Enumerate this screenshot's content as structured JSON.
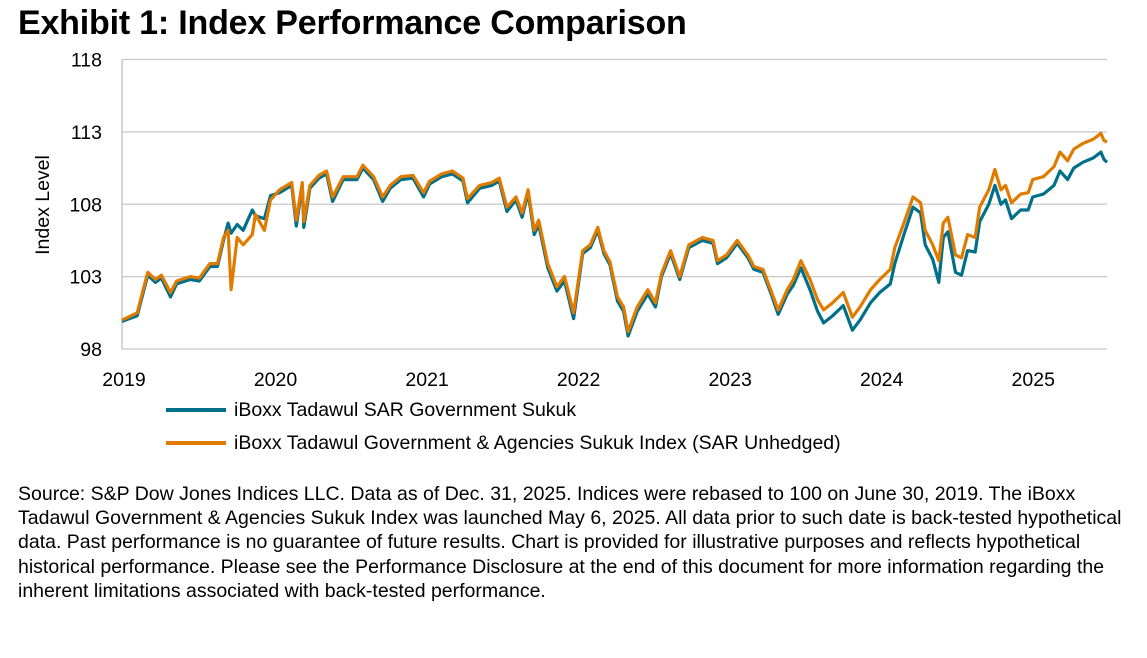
{
  "title": "Exhibit 1: Index Performance Comparison",
  "footnote": "Source: S&P Dow Jones Indices LLC.  Data as of Dec. 31, 2025.  Indices were rebased to 100 on June 30, 2019. The iBoxx Tadawul Government & Agencies Sukuk Index was launched May 6, 2025.  All data prior to such date is back-tested hypothetical data.  Past performance is no guarantee of future results.  Chart is provided for illustrative purposes and reflects hypothetical historical performance. Please see the Performance Disclosure at the end of this document for more information regarding the inherent limitations associated with back-tested performance.",
  "chart_data": {
    "type": "line",
    "title": "Exhibit 1: Index Performance Comparison",
    "xlabel": "",
    "ylabel": "Index Level",
    "xlim": [
      2019,
      2025.5
    ],
    "ylim": [
      98,
      118
    ],
    "x_ticks": [
      2019,
      2020,
      2021,
      2022,
      2023,
      2024,
      2025
    ],
    "x_tick_labels": [
      "2019",
      "2020",
      "2021",
      "2022",
      "2023",
      "2024",
      "2025"
    ],
    "y_ticks": [
      98,
      103,
      108,
      113,
      118
    ],
    "y_tick_labels": [
      "98",
      "103",
      "108",
      "113",
      "118"
    ],
    "grid": "horizontal",
    "legend_position": "bottom",
    "x": [
      2019.0,
      2019.1,
      2019.13,
      2019.17,
      2019.22,
      2019.26,
      2019.32,
      2019.36,
      2019.45,
      2019.51,
      2019.58,
      2019.63,
      2019.67,
      2019.7,
      2019.72,
      2019.76,
      2019.8,
      2019.86,
      2019.88,
      2019.94,
      2019.98,
      2020.04,
      2020.12,
      2020.15,
      2020.19,
      2020.2,
      2020.24,
      2020.3,
      2020.35,
      2020.39,
      2020.46,
      2020.55,
      2020.59,
      2020.66,
      2020.72,
      2020.77,
      2020.84,
      2020.92,
      2020.99,
      2021.03,
      2021.11,
      2021.18,
      2021.25,
      2021.28,
      2021.36,
      2021.44,
      2021.49,
      2021.54,
      2021.6,
      2021.64,
      2021.68,
      2021.72,
      2021.75,
      2021.81,
      2021.87,
      2021.92,
      2021.98,
      2022.04,
      2022.09,
      2022.14,
      2022.18,
      2022.22,
      2022.27,
      2022.31,
      2022.34,
      2022.4,
      2022.47,
      2022.52,
      2022.56,
      2022.62,
      2022.68,
      2022.74,
      2022.83,
      2022.9,
      2022.93,
      2022.99,
      2023.06,
      2023.13,
      2023.17,
      2023.23,
      2023.28,
      2023.33,
      2023.39,
      2023.43,
      2023.48,
      2023.54,
      2023.59,
      2023.63,
      2023.69,
      2023.76,
      2023.82,
      2023.87,
      2023.94,
      2024.0,
      2024.07,
      2024.1,
      2024.16,
      2024.22,
      2024.27,
      2024.3,
      2024.35,
      2024.39,
      2024.42,
      2024.45,
      2024.5,
      2024.54,
      2024.58,
      2024.63,
      2024.66,
      2024.72,
      2024.76,
      2024.8,
      2024.83,
      2024.87,
      2024.93,
      2024.98,
      2025.01,
      2025.08,
      2025.15,
      2025.19,
      2025.24,
      2025.28,
      2025.34,
      2025.41,
      2025.46,
      2025.48,
      2025.5
    ],
    "series": [
      {
        "name": "iBoxx Tadawul SAR Government Sukuk",
        "color": "#00708A",
        "values": [
          99.9,
          100.3,
          101.5,
          103.1,
          102.6,
          102.9,
          101.6,
          102.5,
          102.8,
          102.7,
          103.7,
          103.7,
          105.5,
          106.7,
          106.0,
          106.6,
          106.2,
          107.6,
          107.2,
          107.0,
          108.6,
          108.8,
          109.3,
          106.5,
          109.3,
          106.4,
          109.1,
          109.8,
          110.1,
          108.2,
          109.7,
          109.7,
          110.5,
          109.7,
          108.2,
          109.1,
          109.7,
          109.8,
          108.5,
          109.4,
          109.9,
          110.1,
          109.6,
          108.1,
          109.1,
          109.3,
          109.6,
          107.5,
          108.3,
          107.1,
          108.8,
          105.9,
          106.6,
          103.6,
          102.0,
          102.7,
          100.1,
          104.6,
          105.0,
          106.2,
          104.6,
          103.8,
          101.3,
          100.6,
          98.9,
          100.6,
          101.8,
          100.9,
          103.0,
          104.6,
          102.8,
          105.0,
          105.5,
          105.3,
          103.9,
          104.3,
          105.3,
          104.3,
          103.5,
          103.3,
          101.9,
          100.4,
          101.8,
          102.4,
          103.6,
          102.1,
          100.6,
          99.8,
          100.3,
          101.0,
          99.3,
          100.0,
          101.2,
          101.9,
          102.5,
          103.9,
          105.9,
          107.8,
          107.4,
          105.2,
          104.2,
          102.6,
          105.7,
          106.1,
          103.3,
          103.1,
          104.8,
          104.7,
          106.8,
          108.0,
          109.3,
          108.0,
          108.3,
          107.0,
          107.6,
          107.6,
          108.5,
          108.7,
          109.3,
          110.3,
          109.7,
          110.5,
          110.9,
          111.2,
          111.6,
          111.1,
          110.9
        ]
      },
      {
        "name": "iBoxx Tadawul Government & Agencies Sukuk Index (SAR Unhedged)",
        "color": "#E07B00",
        "values": [
          100.0,
          100.5,
          101.7,
          103.3,
          102.8,
          103.1,
          101.9,
          102.7,
          103.0,
          102.9,
          103.9,
          103.9,
          105.7,
          106.2,
          102.1,
          105.7,
          105.2,
          105.9,
          107.3,
          106.2,
          108.3,
          109.0,
          109.5,
          106.9,
          109.5,
          106.8,
          109.3,
          110.0,
          110.3,
          108.5,
          109.9,
          109.9,
          110.7,
          109.9,
          108.5,
          109.3,
          109.9,
          110.0,
          108.8,
          109.6,
          110.1,
          110.3,
          109.8,
          108.4,
          109.3,
          109.5,
          109.8,
          107.8,
          108.5,
          107.4,
          109.0,
          106.2,
          106.9,
          103.9,
          102.3,
          103.0,
          100.5,
          104.8,
          105.2,
          106.4,
          104.8,
          104.0,
          101.6,
          100.9,
          99.2,
          100.9,
          102.1,
          101.2,
          103.2,
          104.8,
          103.0,
          105.2,
          105.7,
          105.5,
          104.1,
          104.5,
          105.5,
          104.5,
          103.7,
          103.5,
          102.1,
          100.7,
          102.1,
          102.8,
          104.1,
          102.8,
          101.4,
          100.7,
          101.2,
          101.9,
          100.2,
          100.9,
          102.1,
          102.8,
          103.5,
          105.0,
          106.7,
          108.5,
          108.1,
          106.2,
          105.2,
          104.1,
          106.7,
          107.1,
          104.5,
          104.3,
          105.9,
          105.7,
          107.8,
          109.0,
          110.4,
          109.0,
          109.3,
          108.1,
          108.7,
          108.8,
          109.7,
          109.9,
          110.6,
          111.6,
          111.0,
          111.8,
          112.2,
          112.5,
          112.9,
          112.4,
          112.3
        ]
      }
    ]
  }
}
